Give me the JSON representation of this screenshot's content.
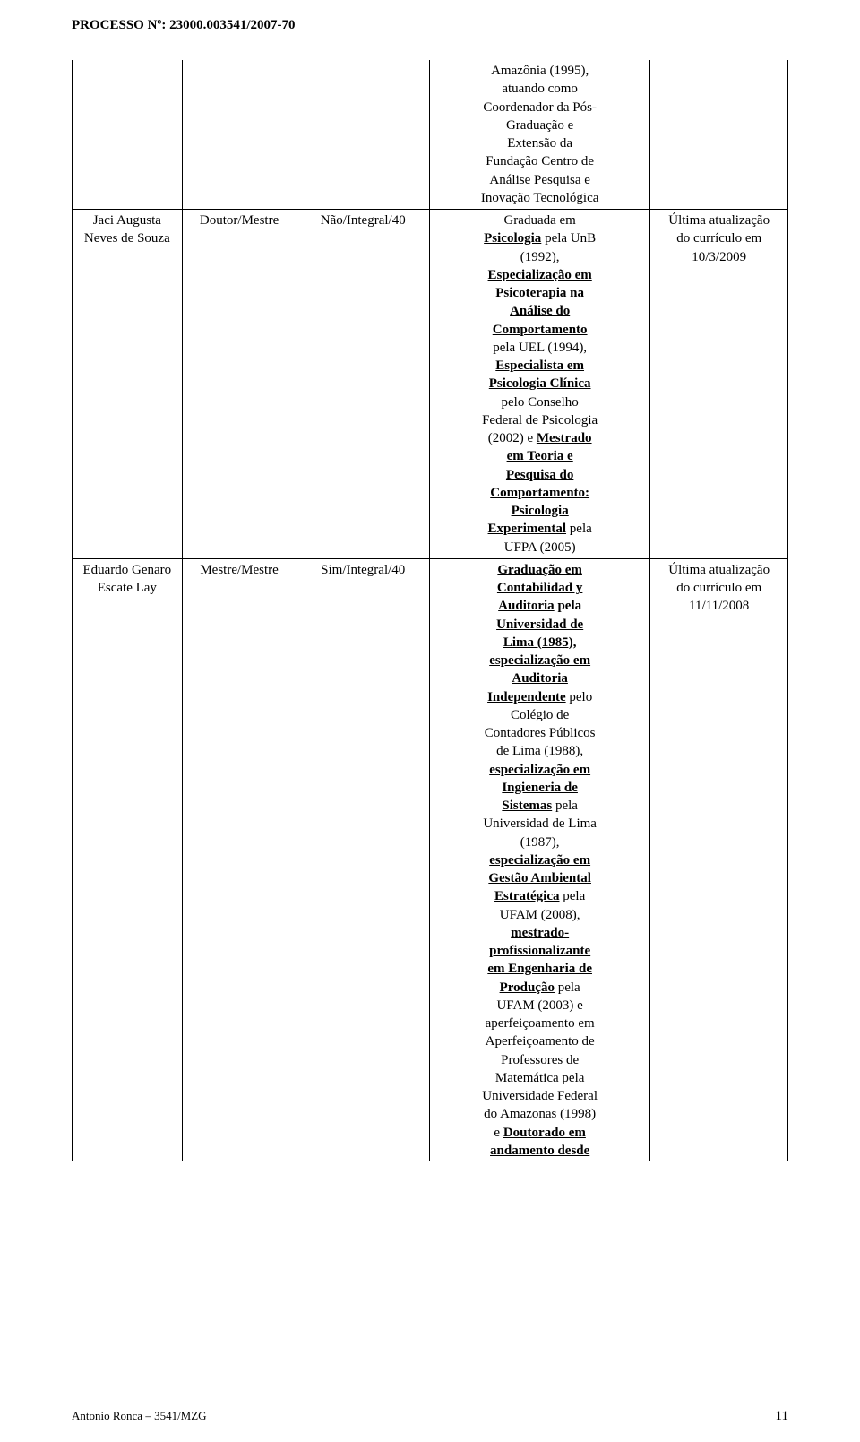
{
  "header": {
    "processo_label": "PROCESSO Nº:",
    "processo_num": "23000.003541/2007-70"
  },
  "rows": [
    {
      "name": "Jaci Augusta Neves de Souza",
      "title": "Doutor/Mestre",
      "regime": "Não/Integral/40",
      "update_l1": "Última atualização",
      "update_l2": "do currículo em",
      "update_l3": "10/3/2009"
    },
    {
      "name": "Eduardo Genaro Escate Lay",
      "title": "Mestre/Mestre",
      "regime": "Sim/Integral/40",
      "update_l1": "Última atualização",
      "update_l2": "do currículo em",
      "update_l3": "11/11/2008"
    }
  ],
  "desc1": {
    "t1": "Amazônia (1995),",
    "t2": "atuando como",
    "t3": "Coordenador da Pós-",
    "t4": "Graduação e",
    "t5": "Extensão da",
    "t6": "Fundação Centro de",
    "t7": "Análise Pesquisa e",
    "t8": "Inovação Tecnológica",
    "t9": "Graduada em",
    "t10a": "Psicologia",
    "t10b": " pela UnB",
    "t11": "(1992),",
    "t12": "Especialização em",
    "t13": "Psicoterapia na",
    "t14": "Análise do",
    "t15": "Comportamento",
    "t16": "pela UEL (1994),",
    "t17a": "Especialista em",
    "t18a": "Psicologia Clínica",
    "t19": "pelo Conselho",
    "t20": "Federal de Psicologia",
    "t21a": "(2002) e ",
    "t21b": "Mestrado",
    "t22": "em Teoria e",
    "t23": "Pesquisa do",
    "t24": "Comportamento:",
    "t25": "Psicologia",
    "t26a": "Experimental",
    "t26b": " pela",
    "t27": "UFPA (2005)"
  },
  "desc2": {
    "t1": "Graduação em",
    "t2": "Contabilidad y",
    "t3a": "Auditoria",
    "t3b": " pela",
    "t4": "Universidad de",
    "t5": "Lima (1985),",
    "t6": "especialização em",
    "t7": "Auditoria",
    "t8a": "Independente",
    "t8b": " pelo",
    "t9": "Colégio de",
    "t10": "Contadores Públicos",
    "t11": "de Lima (1988),",
    "t12": "especialização em",
    "t13": "Ingieneria de",
    "t14a": "Sistemas",
    "t14b": " pela",
    "t15": "Universidad de Lima",
    "t16": "(1987),",
    "t17": "especialização em",
    "t18": "Gestão Ambiental",
    "t19a": "Estratégica",
    "t19b": " pela",
    "t20": "UFAM (2008),",
    "t21": "mestrado-",
    "t22": "profissionalizante",
    "t23": "em Engenharia de",
    "t24a": "Produção",
    "t24b": " pela",
    "t25": "UFAM (2003) e",
    "t26": "aperfeiçoamento em",
    "t27": "Aperfeiçoamento de",
    "t28": "Professores de",
    "t29": "Matemática pela",
    "t30": "Universidade Federal",
    "t31": "do Amazonas (1998)",
    "t32a": "e ",
    "t32b": "Doutorado em",
    "t33": "andamento desde"
  },
  "footer": {
    "left": "Antonio Ronca – 3541/MZG",
    "page": "11"
  }
}
